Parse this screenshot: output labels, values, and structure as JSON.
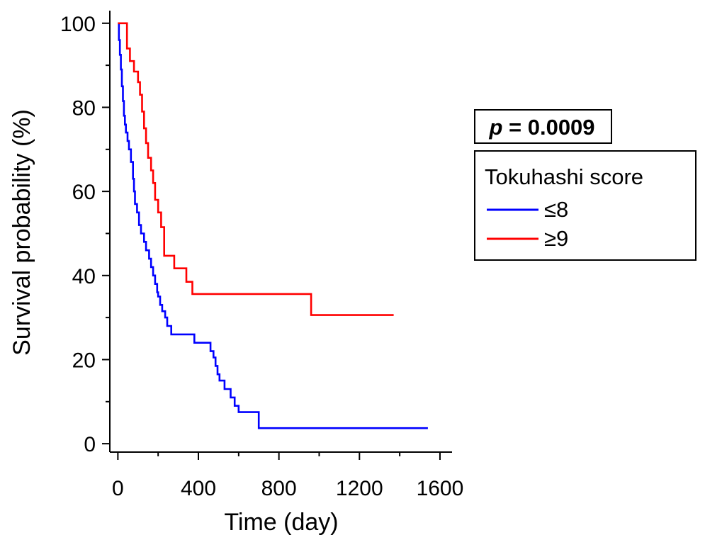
{
  "chart_data": {
    "type": "line",
    "xlabel": "Time (day)",
    "ylabel": "Survival probability (%)",
    "xlim": [
      -40,
      1660
    ],
    "ylim": [
      -2,
      103
    ],
    "xticks": [
      0,
      400,
      800,
      1200,
      1600
    ],
    "yticks": [
      0,
      20,
      40,
      60,
      80,
      100
    ],
    "xtick_labels": [
      "0",
      "400",
      "800",
      "1200",
      "1600"
    ],
    "ytick_labels": [
      "0",
      "20",
      "40",
      "60",
      "80",
      "100"
    ],
    "annotation": {
      "p_symbol": "p",
      "p_text": " = 0.0009"
    },
    "legend": {
      "title": "Tokuhashi score",
      "placement": "right"
    },
    "series": [
      {
        "name": "≤8",
        "color": "#0000ff",
        "x": [
          0,
          5,
          10,
          15,
          20,
          25,
          30,
          35,
          40,
          48,
          55,
          65,
          75,
          80,
          85,
          95,
          105,
          115,
          130,
          140,
          155,
          165,
          175,
          185,
          195,
          200,
          210,
          220,
          235,
          245,
          265,
          280,
          330,
          380,
          420,
          460,
          475,
          485,
          495,
          505,
          530,
          560,
          580,
          600,
          640,
          680,
          700,
          1540
        ],
        "y": [
          100,
          96,
          92.5,
          89,
          85,
          81.5,
          78,
          75.9,
          74,
          72,
          70,
          67,
          63,
          60,
          57,
          55,
          52,
          50,
          48,
          46,
          44,
          42,
          40,
          38,
          36,
          35,
          33,
          31.5,
          30,
          28,
          26,
          26,
          26,
          24,
          24,
          22,
          20.5,
          18.5,
          16.5,
          15,
          13,
          11,
          9,
          7.5,
          7.5,
          7.5,
          3.7,
          3.7
        ]
      },
      {
        "name": "≥9",
        "color": "#ff0000",
        "x": [
          0,
          10,
          20,
          30,
          45,
          60,
          80,
          100,
          110,
          120,
          130,
          140,
          150,
          165,
          175,
          185,
          200,
          215,
          230,
          260,
          280,
          300,
          340,
          370,
          400,
          960,
          1370
        ],
        "y": [
          100,
          100,
          100,
          100,
          94,
          91,
          88.5,
          86,
          83,
          79,
          75,
          71.5,
          68,
          65,
          62,
          58,
          55,
          51.5,
          44.7,
          44.7,
          41.7,
          41.7,
          38.5,
          35.6,
          35.6,
          30.6,
          30.6
        ]
      }
    ]
  }
}
